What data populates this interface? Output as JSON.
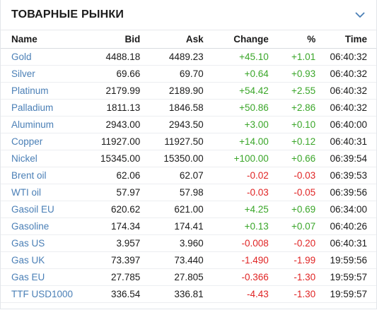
{
  "widget": {
    "title": "ТОВАРНЫЕ РЫНКИ",
    "collapse_icon": "chevron-down-icon",
    "accent_color": "#4a7fb6",
    "positive_color": "#3aa629",
    "negative_color": "#e02424"
  },
  "columns": {
    "name": "Name",
    "bid": "Bid",
    "ask": "Ask",
    "change": "Change",
    "pct": "%",
    "time": "Time"
  },
  "rows": [
    {
      "name": "Gold",
      "bid": "4488.18",
      "ask": "4489.23",
      "change": "+45.10",
      "pct": "+1.01",
      "time": "06:40:32",
      "dir": "pos"
    },
    {
      "name": "Silver",
      "bid": "69.66",
      "ask": "69.70",
      "change": "+0.64",
      "pct": "+0.93",
      "time": "06:40:32",
      "dir": "pos"
    },
    {
      "name": "Platinum",
      "bid": "2179.99",
      "ask": "2189.90",
      "change": "+54.42",
      "pct": "+2.55",
      "time": "06:40:32",
      "dir": "pos"
    },
    {
      "name": "Palladium",
      "bid": "1811.13",
      "ask": "1846.58",
      "change": "+50.86",
      "pct": "+2.86",
      "time": "06:40:32",
      "dir": "pos"
    },
    {
      "name": "Aluminum",
      "bid": "2943.00",
      "ask": "2943.50",
      "change": "+3.00",
      "pct": "+0.10",
      "time": "06:40:00",
      "dir": "pos"
    },
    {
      "name": "Copper",
      "bid": "11927.00",
      "ask": "11927.50",
      "change": "+14.00",
      "pct": "+0.12",
      "time": "06:40:31",
      "dir": "pos"
    },
    {
      "name": "Nickel",
      "bid": "15345.00",
      "ask": "15350.00",
      "change": "+100.00",
      "pct": "+0.66",
      "time": "06:39:54",
      "dir": "pos"
    },
    {
      "name": "Brent oil",
      "bid": "62.06",
      "ask": "62.07",
      "change": "-0.02",
      "pct": "-0.03",
      "time": "06:39:53",
      "dir": "neg"
    },
    {
      "name": "WTI oil",
      "bid": "57.97",
      "ask": "57.98",
      "change": "-0.03",
      "pct": "-0.05",
      "time": "06:39:56",
      "dir": "neg"
    },
    {
      "name": "Gasoil EU",
      "bid": "620.62",
      "ask": "621.00",
      "change": "+4.25",
      "pct": "+0.69",
      "time": "06:34:00",
      "dir": "pos"
    },
    {
      "name": "Gasoline",
      "bid": "174.34",
      "ask": "174.41",
      "change": "+0.13",
      "pct": "+0.07",
      "time": "06:40:26",
      "dir": "pos"
    },
    {
      "name": "Gas US",
      "bid": "3.957",
      "ask": "3.960",
      "change": "-0.008",
      "pct": "-0.20",
      "time": "06:40:31",
      "dir": "neg"
    },
    {
      "name": "Gas UK",
      "bid": "73.397",
      "ask": "73.440",
      "change": "-1.490",
      "pct": "-1.99",
      "time": "19:59:56",
      "dir": "neg"
    },
    {
      "name": "Gas EU",
      "bid": "27.785",
      "ask": "27.805",
      "change": "-0.366",
      "pct": "-1.30",
      "time": "19:59:57",
      "dir": "neg"
    },
    {
      "name": "TTF USD1000",
      "bid": "336.54",
      "ask": "336.81",
      "change": "-4.43",
      "pct": "-1.30",
      "time": "19:59:57",
      "dir": "neg"
    }
  ]
}
